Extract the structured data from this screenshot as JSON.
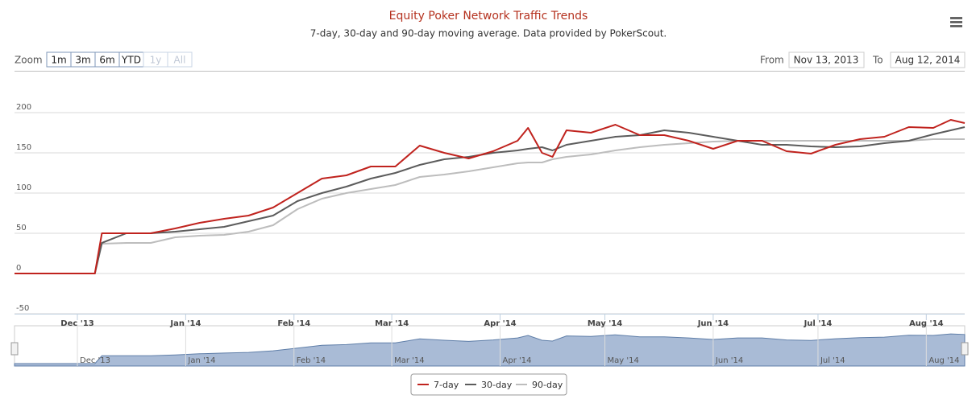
{
  "chart_data": {
    "type": "line",
    "title": "Equity Poker Network Traffic Trends",
    "subtitle": "7-day, 30-day and 90-day moving average. Data provided by PokerScout.",
    "x": [
      "2013-11-13",
      "2013-12-06",
      "2013-12-08",
      "2013-12-15",
      "2013-12-22",
      "2013-12-29",
      "2014-01-05",
      "2014-01-12",
      "2014-01-19",
      "2014-01-26",
      "2014-02-02",
      "2014-02-09",
      "2014-02-16",
      "2014-02-23",
      "2014-03-02",
      "2014-03-09",
      "2014-03-16",
      "2014-03-23",
      "2014-03-30",
      "2014-04-06",
      "2014-04-09",
      "2014-04-13",
      "2014-04-16",
      "2014-04-20",
      "2014-04-27",
      "2014-05-04",
      "2014-05-11",
      "2014-05-18",
      "2014-05-25",
      "2014-06-01",
      "2014-06-08",
      "2014-06-15",
      "2014-06-22",
      "2014-06-29",
      "2014-07-06",
      "2014-07-13",
      "2014-07-20",
      "2014-07-27",
      "2014-08-03",
      "2014-08-08",
      "2014-08-12"
    ],
    "series": [
      {
        "name": "7-day",
        "color": "#c0231e",
        "values": [
          0,
          0,
          50,
          50,
          50,
          56,
          63,
          68,
          72,
          82,
          100,
          118,
          122,
          133,
          133,
          159,
          150,
          143,
          152,
          165,
          181,
          150,
          145,
          178,
          175,
          185,
          172,
          172,
          165,
          155,
          165,
          165,
          152,
          149,
          160,
          167,
          170,
          182,
          181,
          191,
          187
        ]
      },
      {
        "name": "30-day",
        "color": "#5c5c5c",
        "values": [
          0,
          0,
          38,
          50,
          50,
          52,
          55,
          58,
          65,
          72,
          90,
          100,
          108,
          118,
          125,
          135,
          142,
          145,
          150,
          153,
          155,
          157,
          153,
          160,
          165,
          170,
          172,
          178,
          175,
          170,
          165,
          160,
          160,
          158,
          157,
          158,
          162,
          165,
          173,
          178,
          182
        ]
      },
      {
        "name": "90-day",
        "color": "#bdbdbd",
        "values": [
          0,
          0,
          37,
          38,
          38,
          45,
          47,
          48,
          52,
          60,
          80,
          93,
          100,
          105,
          110,
          120,
          123,
          127,
          132,
          137,
          138,
          138,
          142,
          145,
          148,
          153,
          157,
          160,
          162,
          164,
          165,
          165,
          165,
          165,
          165,
          165,
          165,
          165,
          167,
          167,
          167
        ]
      }
    ],
    "xlim": [
      "2013-11-13",
      "2014-08-12"
    ],
    "xticks": [
      {
        "value": "2013-12-01",
        "label": "Dec '13"
      },
      {
        "value": "2014-01-01",
        "label": "Jan '14"
      },
      {
        "value": "2014-02-01",
        "label": "Feb '14"
      },
      {
        "value": "2014-03-01",
        "label": "Mar '14"
      },
      {
        "value": "2014-04-01",
        "label": "Apr '14"
      },
      {
        "value": "2014-05-01",
        "label": "May '14"
      },
      {
        "value": "2014-06-01",
        "label": "Jun '14"
      },
      {
        "value": "2014-07-01",
        "label": "Jul '14"
      },
      {
        "value": "2014-08-01",
        "label": "Aug '14"
      }
    ],
    "ylim": [
      -50,
      250
    ],
    "yticks": [
      -50,
      0,
      50,
      100,
      150,
      200
    ],
    "grid": true,
    "legend": "bottom"
  },
  "range_selector": {
    "zoom_label": "Zoom",
    "buttons": [
      "1m",
      "3m",
      "6m",
      "YTD",
      "1y",
      "All"
    ],
    "disabled": [
      false,
      false,
      false,
      false,
      true,
      true
    ],
    "from_label": "From",
    "from": "Nov 13, 2013",
    "to_label": "To",
    "to": "Aug 12, 2014"
  }
}
